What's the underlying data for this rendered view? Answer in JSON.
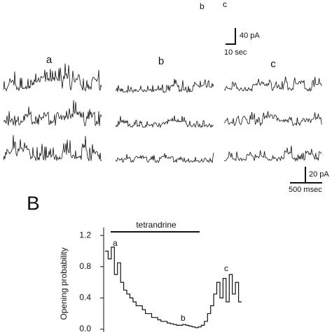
{
  "figure": {
    "top_trace": {
      "labels": [
        "b",
        "c"
      ],
      "scale_y": "40 pA",
      "scale_x": "10 sec"
    },
    "panel_labels": [
      "a",
      "b",
      "c"
    ],
    "trace_scale_y": "20 pA",
    "trace_scale_x": "500 msec",
    "panel_B": "B"
  },
  "chart_data": {
    "type": "line",
    "y_label": "Opening probability",
    "bar_label": "tetrandrine",
    "point_labels": [
      "a",
      "b",
      "c"
    ],
    "series": [
      {
        "name": "Opening probability",
        "color": "#111111",
        "values": [
          1.0,
          0.9,
          1.05,
          0.7,
          0.85,
          0.6,
          0.5,
          0.45,
          0.4,
          0.35,
          0.3,
          0.3,
          0.25,
          0.2,
          0.2,
          0.15,
          0.15,
          0.12,
          0.1,
          0.1,
          0.08,
          0.07,
          0.06,
          0.05,
          0.05,
          0.06,
          0.05,
          0.04,
          0.03,
          0.02,
          0.03,
          0.05,
          0.1,
          0.2,
          0.3,
          0.45,
          0.6,
          0.4,
          0.65,
          0.35,
          0.7,
          0.45,
          0.6,
          0.35
        ]
      }
    ],
    "ylim": [
      0,
      1.3
    ],
    "yticks": [
      {
        "value": 0,
        "label": "0.0"
      },
      0.4,
      0.8,
      1.2
    ]
  }
}
